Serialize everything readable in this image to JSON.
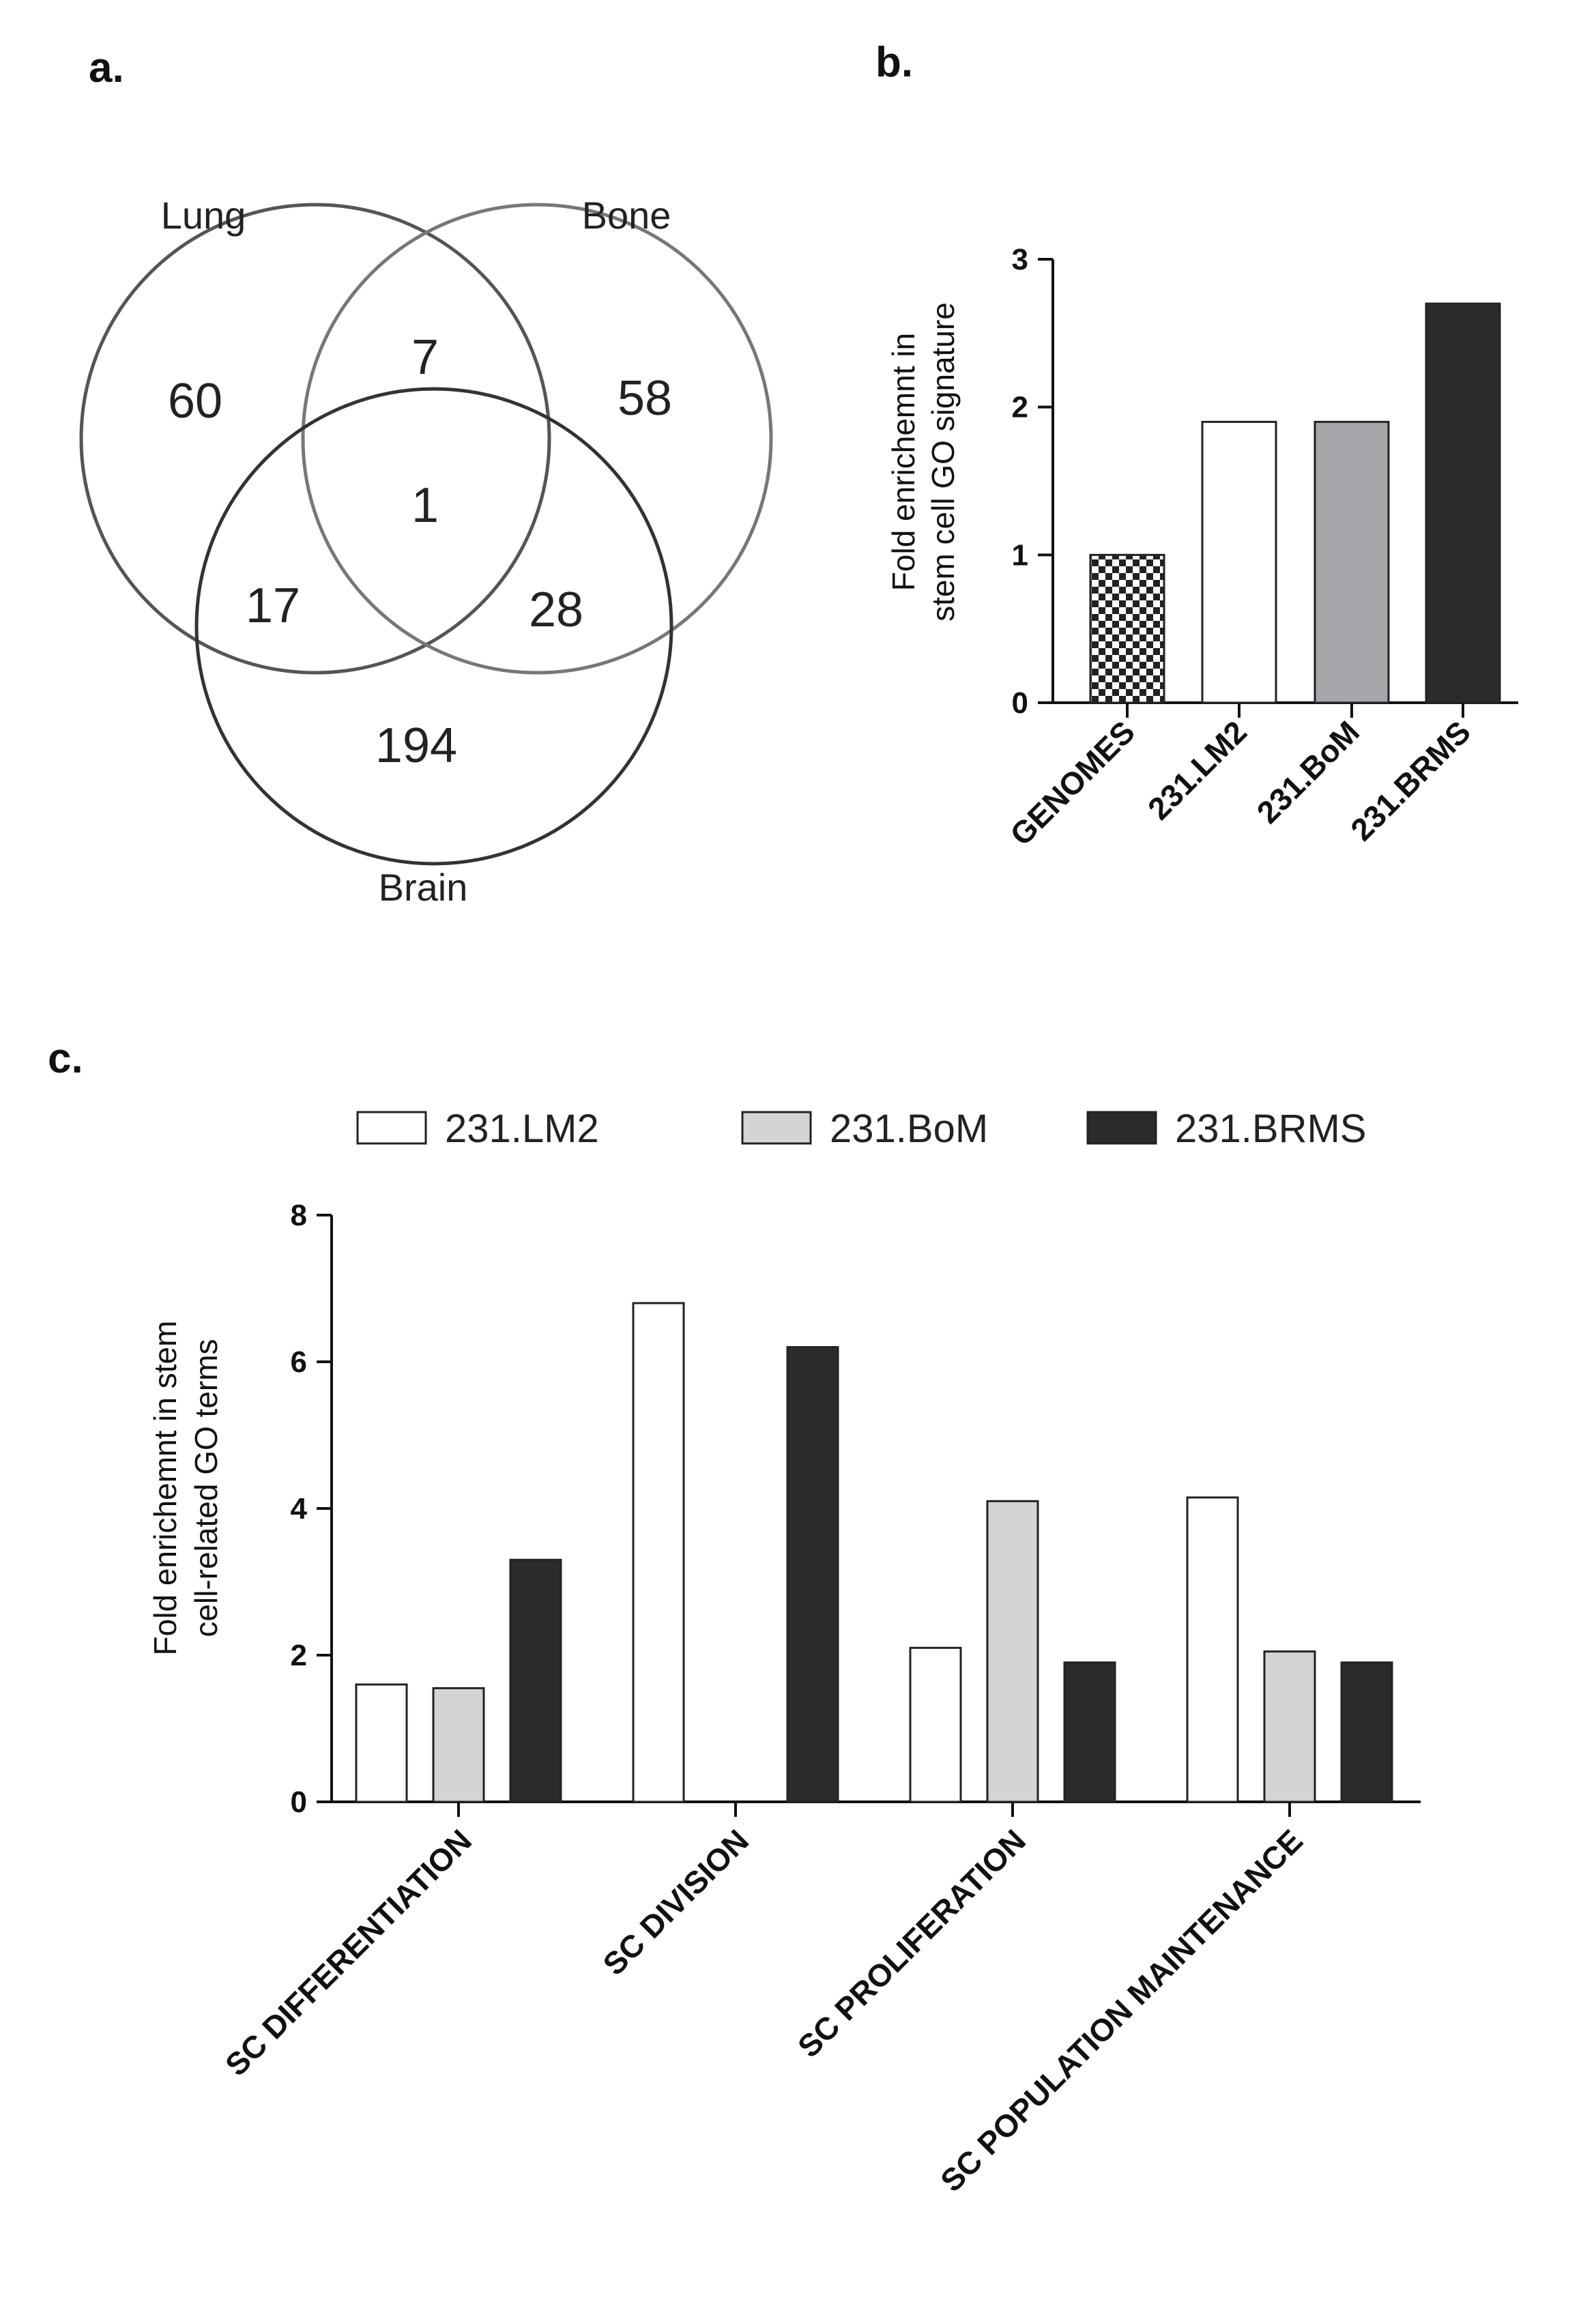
{
  "panels": {
    "a": "a.",
    "b": "b.",
    "c": "c."
  },
  "venn": {
    "sets": [
      "Lung",
      "Bone",
      "Brain"
    ],
    "regions": {
      "lung_only": 60,
      "bone_only": 58,
      "brain_only": 194,
      "lung_bone": 7,
      "lung_brain": 17,
      "bone_brain": 28,
      "all_three": 1
    },
    "colors": {
      "lung": "#555555",
      "bone": "#777777",
      "brain": "#333333"
    }
  },
  "chart_data": [
    {
      "id": "b",
      "type": "bar",
      "categories": [
        "GENOMES",
        "231.LM2",
        "231.BoM",
        "231.BRMS"
      ],
      "values": [
        1.0,
        1.9,
        1.9,
        2.7
      ],
      "fills": [
        "checker",
        "#ffffff",
        "#a7a6ab",
        "#2b2b2b"
      ],
      "title": "",
      "xlabel": "",
      "ylabel_lines": [
        "Fold enrichemnt in",
        "stem cell GO signature"
      ],
      "ylim": [
        0,
        3
      ],
      "yticks": [
        "0",
        "1",
        "2",
        "3"
      ]
    },
    {
      "id": "c",
      "type": "bar",
      "categories": [
        "SC DIFFERENTIATION",
        "SC DIVISION",
        "SC PROLIFERATION",
        "SC POPULATION MAINTENANCE"
      ],
      "series": [
        {
          "name": "231.LM2",
          "values": [
            1.6,
            6.8,
            2.1,
            4.15
          ],
          "color": "#ffffff"
        },
        {
          "name": "231.BoM",
          "values": [
            1.55,
            0,
            4.1,
            2.05
          ],
          "color": "#d4d4d4"
        },
        {
          "name": "231.BRMS",
          "values": [
            3.3,
            6.2,
            1.9,
            1.9
          ],
          "color": "#2b2b2b"
        }
      ],
      "title": "",
      "xlabel": "",
      "ylabel_lines": [
        "Fold enrichemnt in stem",
        "cell-related GO terms"
      ],
      "ylim": [
        0,
        8
      ],
      "yticks": [
        "0",
        "2",
        "4",
        "6",
        "8"
      ],
      "legend_position": "top"
    }
  ]
}
